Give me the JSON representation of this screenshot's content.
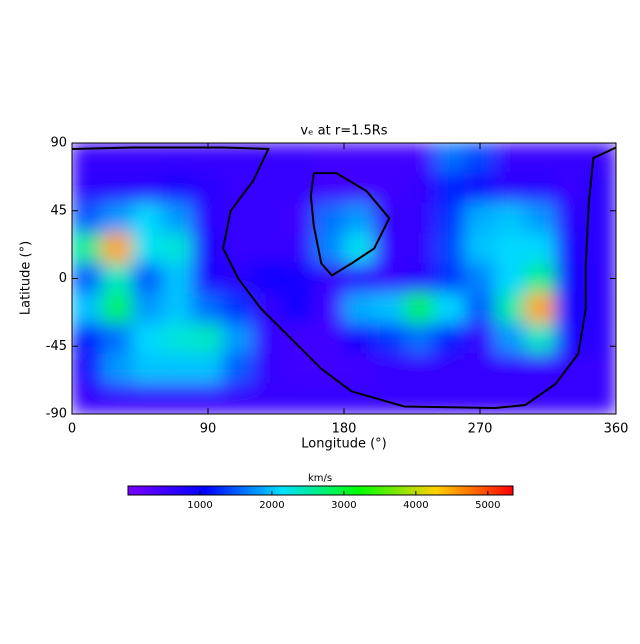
{
  "chart_data": {
    "type": "heatmap",
    "title": "vₑ at r=1.5Rs",
    "x_label": "Longitude (°)",
    "y_label": "Latitude (°)",
    "colorbar_label": "km/s",
    "xlim": [
      0,
      360
    ],
    "xticks": [
      0,
      90,
      180,
      270,
      360
    ],
    "ylim": [
      -90,
      90
    ],
    "yticks": [
      -90,
      -45,
      0,
      45,
      90
    ],
    "zlim": [
      0,
      5350
    ],
    "zticks": [
      1000,
      2000,
      3000,
      4000,
      5000
    ],
    "colormap": [
      "#7a00ff",
      "#0000ff",
      "#00e0ff",
      "#00ff00",
      "#ffd000",
      "#ff0000"
    ],
    "x": [
      10,
      30,
      50,
      70,
      90,
      110,
      130,
      150,
      170,
      190,
      210,
      230,
      250,
      270,
      290,
      310,
      330,
      350
    ],
    "y": [
      80,
      60,
      40,
      20,
      0,
      -20,
      -40,
      -60,
      -80
    ],
    "values": [
      [
        600,
        600,
        600,
        600,
        600,
        600,
        600,
        600,
        500,
        500,
        500,
        500,
        1600,
        1400,
        600,
        600,
        600,
        600
      ],
      [
        700,
        700,
        700,
        800,
        700,
        600,
        600,
        600,
        500,
        500,
        500,
        600,
        1200,
        1000,
        700,
        700,
        600,
        700
      ],
      [
        1500,
        1800,
        2100,
        1800,
        700,
        600,
        600,
        500,
        1600,
        1800,
        600,
        600,
        1300,
        1900,
        2000,
        1800,
        700,
        700
      ],
      [
        2600,
        4500,
        2200,
        2300,
        800,
        600,
        600,
        600,
        1700,
        2200,
        600,
        600,
        1400,
        2000,
        2100,
        2100,
        800,
        700
      ],
      [
        1500,
        2400,
        1500,
        2000,
        800,
        700,
        1000,
        900,
        600,
        700,
        600,
        700,
        1300,
        1700,
        2100,
        2600,
        900,
        700
      ],
      [
        2000,
        2800,
        1800,
        2000,
        1600,
        1300,
        600,
        1000,
        500,
        1900,
        2000,
        2800,
        2100,
        1500,
        2500,
        4500,
        1000,
        700
      ],
      [
        1200,
        1600,
        2100,
        2300,
        2400,
        1800,
        600,
        500,
        500,
        900,
        1300,
        1600,
        1200,
        600,
        1800,
        2400,
        800,
        700
      ],
      [
        900,
        1800,
        2000,
        2000,
        2000,
        1500,
        600,
        500,
        500,
        500,
        600,
        600,
        600,
        600,
        600,
        600,
        600,
        600
      ],
      [
        600,
        600,
        600,
        600,
        600,
        600,
        600,
        600,
        600,
        600,
        600,
        600,
        600,
        600,
        600,
        600,
        600,
        600
      ]
    ],
    "contour": {
      "color": "#000000",
      "x": [
        0,
        40,
        100,
        130,
        120,
        105,
        100,
        110,
        125,
        145,
        165,
        185,
        220,
        280,
        300,
        320,
        335,
        340,
        340,
        342,
        345,
        360,
        null,
        160,
        175,
        195,
        210,
        200,
        185,
        172,
        165,
        160,
        158,
        160
      ],
      "y": [
        86,
        87,
        87,
        86,
        65,
        45,
        20,
        0,
        -20,
        -40,
        -60,
        -75,
        -85,
        -86,
        -84,
        -70,
        -50,
        -20,
        10,
        50,
        80,
        87,
        null,
        70,
        70,
        58,
        40,
        20,
        10,
        2,
        10,
        35,
        55,
        70
      ]
    }
  }
}
